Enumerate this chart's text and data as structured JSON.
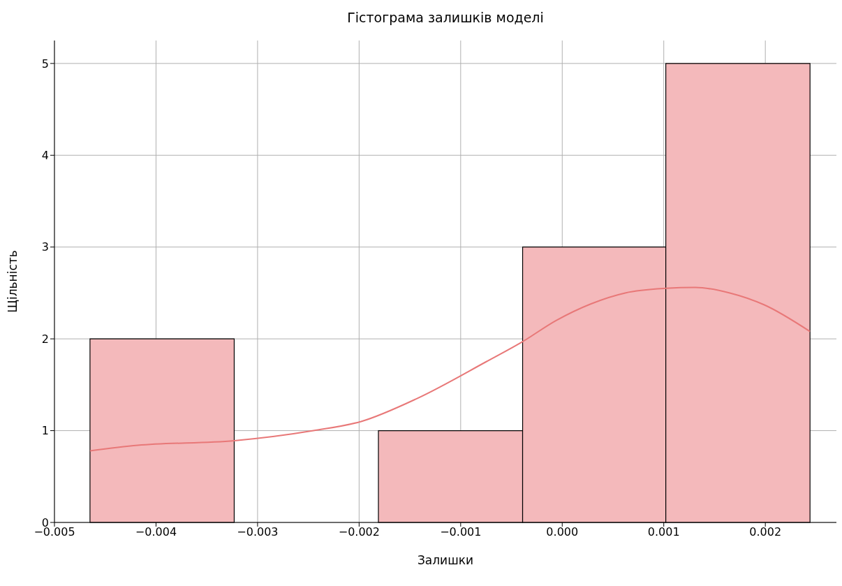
{
  "chart_data": {
    "type": "histogram",
    "title": "Гістограма залишків моделі",
    "xlabel": "Залишки",
    "ylabel": "Щільність",
    "bins": [
      -0.00465,
      -0.00323,
      -0.00181,
      -0.00039,
      0.00102,
      0.00244
    ],
    "values": [
      2,
      0,
      1,
      3,
      5
    ],
    "color": "#f4b9bb",
    "series": [
      {
        "type": "line",
        "color": "#e87878",
        "x": [
          -0.00465,
          -0.00418,
          -0.00323,
          -0.00245,
          -0.00198,
          -0.00143,
          -0.00075,
          -0.00039,
          -6e-05,
          0.00028,
          0.00062,
          0.00102,
          0.00131,
          0.00165,
          0.00199,
          0.00244
        ],
        "values": [
          0.78,
          0.84,
          0.89,
          1.0,
          1.1,
          1.35,
          1.75,
          1.97,
          2.2,
          2.38,
          2.5,
          2.55,
          2.56,
          2.5,
          2.37,
          2.08
        ]
      }
    ],
    "xlim": [
      -0.005,
      0.0027
    ],
    "xticks": [
      {
        "value": -0.005,
        "label": "−0.005"
      },
      {
        "value": -0.004,
        "label": "−0.004"
      },
      {
        "value": -0.003,
        "label": "−0.003"
      },
      {
        "value": -0.002,
        "label": "−0.002"
      },
      {
        "value": -0.001,
        "label": "−0.001"
      },
      {
        "value": 0,
        "label": "0.000"
      },
      {
        "value": 0.001,
        "label": "0.001"
      },
      {
        "value": 0.002,
        "label": "0.002"
      }
    ],
    "ylim": [
      0,
      5.25
    ],
    "yticks": [
      0,
      1,
      2,
      3,
      4,
      5
    ],
    "grid": true
  }
}
